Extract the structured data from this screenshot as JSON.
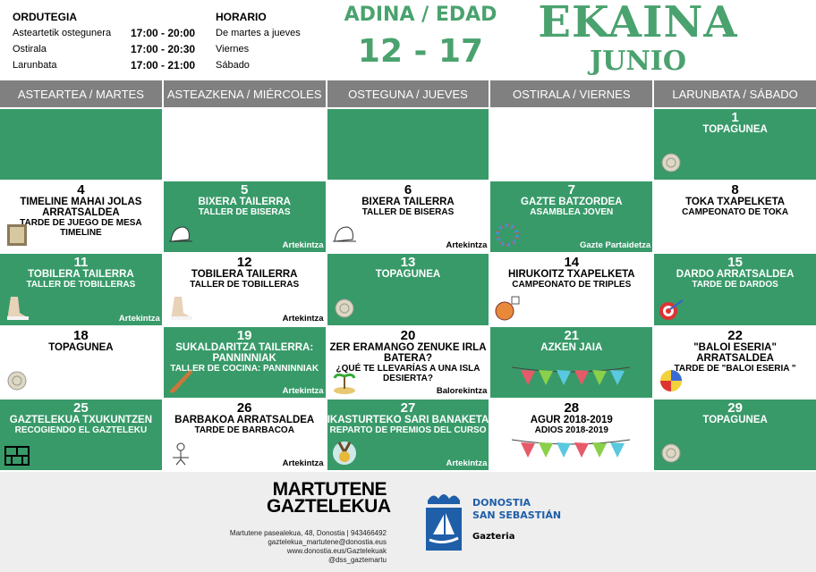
{
  "schedule": {
    "title_eu": "ORDUTEGIA",
    "title_es": "HORARIO",
    "rows": [
      {
        "eu": "Asteartetik ostegunera",
        "time": "17:00 - 20:00",
        "es": "De martes a jueves"
      },
      {
        "eu": "Ostirala",
        "time": "17:00 - 20:30",
        "es": "Viernes"
      },
      {
        "eu": "Larunbata",
        "time": "17:00 - 21:00",
        "es": "Sábado"
      }
    ]
  },
  "age": {
    "label": "ADINA / EDAD",
    "range": "12 - 17"
  },
  "month": {
    "eu": "EKAINA",
    "es": "JUNIO"
  },
  "colors": {
    "green": "#389a69",
    "header_gray": "#808080",
    "footer_bg": "#eeeeee",
    "logo_blue": "#1f5ea8"
  },
  "weekdays": [
    "ASTEARTEA / MARTES",
    "ASTEAZKENA / MIÉRCOLES",
    "OSTEGUNA / JUEVES",
    "OSTIRALA / VIERNES",
    "LARUNBATA / SÁBADO"
  ],
  "cells": [
    {
      "num": "",
      "title": "",
      "sub": "",
      "tag": "",
      "icon": ""
    },
    {
      "num": "",
      "title": "",
      "sub": "",
      "tag": "",
      "icon": ""
    },
    {
      "num": "",
      "title": "",
      "sub": "",
      "tag": "",
      "icon": ""
    },
    {
      "num": "",
      "title": "",
      "sub": "",
      "tag": "",
      "icon": ""
    },
    {
      "num": "1",
      "title": "TOPAGUNEA",
      "sub": "",
      "tag": "",
      "icon": "dreamcatcher-icon"
    },
    {
      "num": "4",
      "title": "TIMELINE MAHAI JOLAS ARRATSALDEA",
      "sub": "TARDE DE JUEGO DE MESA TIMELINE",
      "tag": "",
      "icon": "board-game-icon"
    },
    {
      "num": "5",
      "title": "BIXERA TAILERRA",
      "sub": "TALLER DE BISERAS",
      "tag": "Artekintza",
      "icon": "cap-icon"
    },
    {
      "num": "6",
      "title": "BIXERA TAILERRA",
      "sub": "TALLER DE BISERAS",
      "tag": "Artekintza",
      "icon": "cap-icon"
    },
    {
      "num": "7",
      "title": "GAZTE BATZORDEA",
      "sub": "ASAMBLEA JOVEN",
      "tag": "Gazte Partaidetza",
      "icon": "people-circle-icon"
    },
    {
      "num": "8",
      "title": "TOKA TXAPELKETA",
      "sub": "CAMPEONATO DE TOKA",
      "tag": "",
      "icon": ""
    },
    {
      "num": "11",
      "title": "TOBILERA TAILERRA",
      "sub": "TALLER DE TOBILLERAS",
      "tag": "Artekintza",
      "icon": "anklet-icon"
    },
    {
      "num": "12",
      "title": "TOBILERA TAILERRA",
      "sub": "TALLER DE TOBILLERAS",
      "tag": "Artekintza",
      "icon": "anklet-icon"
    },
    {
      "num": "13",
      "title": "TOPAGUNEA",
      "sub": "",
      "tag": "",
      "icon": "dreamcatcher-icon"
    },
    {
      "num": "14",
      "title": "HIRUKOITZ TXAPELKETA",
      "sub": "CAMPEONATO DE TRIPLES",
      "tag": "",
      "icon": "basketball-icon"
    },
    {
      "num": "15",
      "title": "DARDO ARRATSALDEA",
      "sub": "TARDE DE DARDOS",
      "tag": "",
      "icon": "darts-icon"
    },
    {
      "num": "18",
      "title": "TOPAGUNEA",
      "sub": "",
      "tag": "",
      "icon": "dreamcatcher-icon"
    },
    {
      "num": "19",
      "title": "SUKALDARITZA TAILERRA: PANNINNIAK",
      "sub": "TALLER DE COCINA: PANNINNIAK",
      "tag": "Artekintza",
      "icon": "sandwich-icon"
    },
    {
      "num": "20",
      "title": "ZER ERAMANGO ZENUKE IRLA BATERA?",
      "sub": "¿QUÉ TE LLEVARÍAS A UNA ISLA DESIERTA?",
      "tag": "Balorekintza",
      "icon": "island-icon"
    },
    {
      "num": "21",
      "title": "AZKEN JAIA",
      "sub": "",
      "tag": "",
      "icon": "bunting-icon"
    },
    {
      "num": "22",
      "title": "\"BALOI ESERIA\" ARRATSALDEA",
      "sub": "TARDE DE \"BALOI ESERIA \"",
      "tag": "",
      "icon": "ball-icon"
    },
    {
      "num": "25",
      "title": "GAZTELEKUA TXUKUNTZEN",
      "sub": "RECOGIENDO EL GAZTELEKU",
      "tag": "",
      "icon": "blocks-icon"
    },
    {
      "num": "26",
      "title": "BARBAKOA ARRATSALDEA",
      "sub": "TARDE DE BARBACOA",
      "tag": "Artekintza",
      "icon": "barbecue-icon"
    },
    {
      "num": "27",
      "title": "IKASTURTEKO SARI BANAKETA",
      "sub": "REPARTO DE PREMIOS DEL CURSO",
      "tag": "Artekintza",
      "icon": "medal-icon"
    },
    {
      "num": "28",
      "title": "AGUR 2018-2019",
      "sub": "ADIOS 2018-2019",
      "tag": "",
      "icon": "bunting-icon"
    },
    {
      "num": "29",
      "title": "TOPAGUNEA",
      "sub": "",
      "tag": "",
      "icon": "dreamcatcher-icon"
    }
  ],
  "footer": {
    "brand_line1": "MARTUTENE",
    "brand_line2": "GAZTELEKUA",
    "address": "Martutene pasealekua, 48, Donostia  |  943466492",
    "email": "gaztelekua_martutene@donostia.eus",
    "web": "www.donostia.eus/Gaztelekuak",
    "social": "@dss_gaztemartu",
    "city1": "DONOSTIA",
    "city2": "SAN SEBASTIÁN",
    "dept": "Gazteria"
  }
}
